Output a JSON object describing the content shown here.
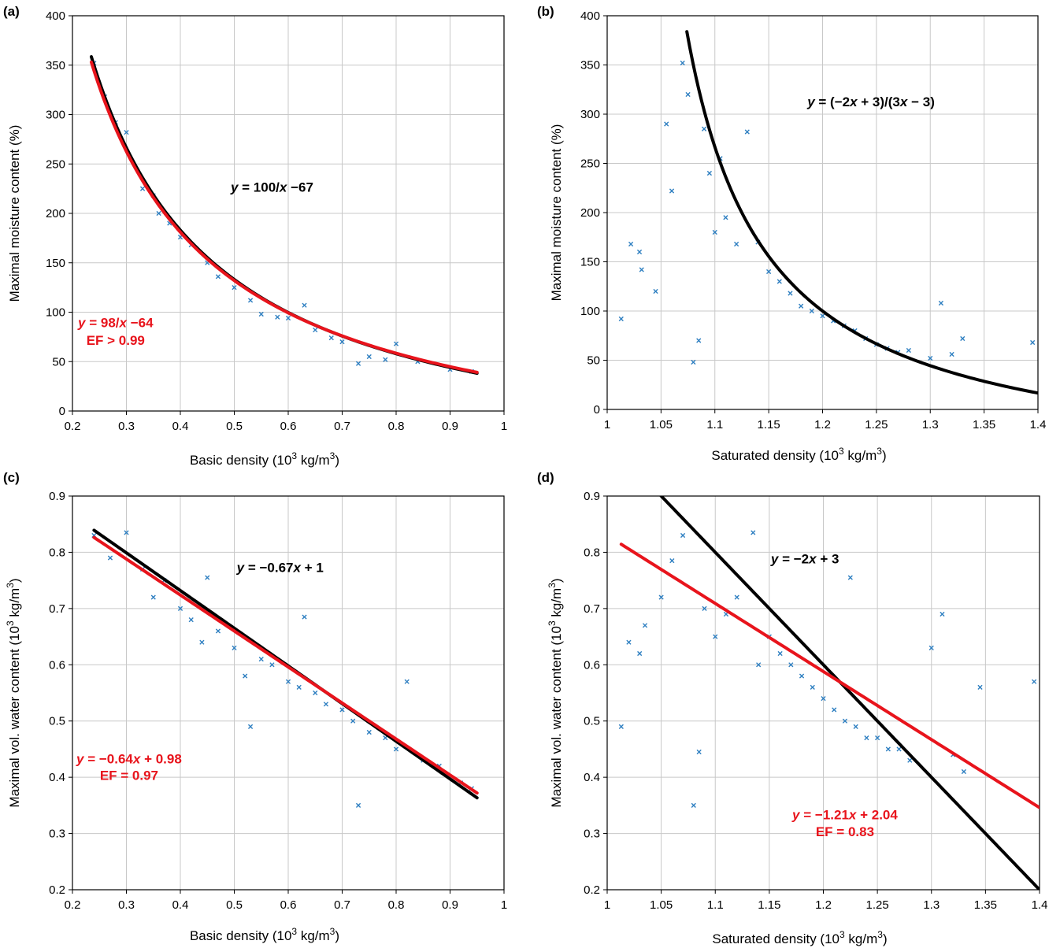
{
  "chart_data": [
    {
      "panel": "(a)",
      "type": "scatter",
      "xlabel": "Basic density (10³ kg/m³)",
      "ylabel": "Maximal moisture content (%)",
      "xlim": [
        0.2,
        1.0
      ],
      "ylim": [
        0,
        400
      ],
      "xticks": [
        0.2,
        0.3,
        0.4,
        0.5,
        0.6,
        0.7,
        0.8,
        0.9,
        1
      ],
      "yticks": [
        0,
        50,
        100,
        150,
        200,
        250,
        300,
        350,
        400
      ],
      "xtick_labels": [
        "0.2",
        "0.3",
        "0.4",
        "0.5",
        "0.6",
        "0.7",
        "0.8",
        "0.9",
        "1"
      ],
      "ytick_labels": [
        "0",
        "50",
        "100",
        "150",
        "200",
        "250",
        "300",
        "350",
        "400"
      ],
      "grid": true,
      "scatter_color": "#2e7fc1",
      "scatter_points": [
        [
          0.24,
          352
        ],
        [
          0.26,
          318
        ],
        [
          0.28,
          292
        ],
        [
          0.3,
          282
        ],
        [
          0.33,
          225
        ],
        [
          0.35,
          218
        ],
        [
          0.36,
          200
        ],
        [
          0.38,
          190
        ],
        [
          0.4,
          176
        ],
        [
          0.42,
          168
        ],
        [
          0.45,
          150
        ],
        [
          0.47,
          136
        ],
        [
          0.5,
          125
        ],
        [
          0.53,
          112
        ],
        [
          0.55,
          98
        ],
        [
          0.58,
          95
        ],
        [
          0.6,
          94
        ],
        [
          0.63,
          107
        ],
        [
          0.65,
          82
        ],
        [
          0.68,
          74
        ],
        [
          0.7,
          70
        ],
        [
          0.73,
          48
        ],
        [
          0.75,
          55
        ],
        [
          0.78,
          52
        ],
        [
          0.8,
          68
        ],
        [
          0.84,
          50
        ],
        [
          0.9,
          42
        ],
        [
          0.94,
          40
        ]
      ],
      "curves": [
        {
          "name": "y = 100/x −67",
          "color": "#000000",
          "x_range": [
            0.235,
            0.95
          ],
          "formula": "100/x - 67"
        },
        {
          "name": "y = 98/x −64",
          "color": "#e8141c",
          "x_range": [
            0.235,
            0.95
          ],
          "formula": "98/x - 64"
        }
      ],
      "annotations": [
        {
          "text": "y = 100/x −67",
          "color": "#000000",
          "x": 0.57,
          "y": 222
        },
        {
          "text": "y = 98/x −64",
          "color": "#e8141c",
          "x": 0.28,
          "y": 85
        },
        {
          "text": "EF > 0.99",
          "color": "#e8141c",
          "x": 0.28,
          "y": 67
        }
      ]
    },
    {
      "panel": "(b)",
      "type": "scatter",
      "xlabel": "Saturated density (10³ kg/m³)",
      "ylabel": "Maximal moisture content (%)",
      "xlim": [
        1.0,
        1.4
      ],
      "ylim": [
        0,
        400
      ],
      "xticks": [
        1,
        1.05,
        1.1,
        1.15,
        1.2,
        1.25,
        1.3,
        1.35,
        1.4
      ],
      "yticks": [
        0,
        50,
        100,
        150,
        200,
        250,
        300,
        350,
        400
      ],
      "xtick_labels": [
        "1",
        "1.05",
        "1.1",
        "1.15",
        "1.2",
        "1.25",
        "1.3",
        "1.35",
        "1.4"
      ],
      "ytick_labels": [
        "0",
        "50",
        "100",
        "150",
        "200",
        "250",
        "300",
        "350",
        "400"
      ],
      "grid": true,
      "scatter_color": "#2e7fc1",
      "scatter_points": [
        [
          1.013,
          92
        ],
        [
          1.022,
          168
        ],
        [
          1.03,
          160
        ],
        [
          1.032,
          142
        ],
        [
          1.045,
          120
        ],
        [
          1.055,
          290
        ],
        [
          1.06,
          222
        ],
        [
          1.07,
          352
        ],
        [
          1.075,
          320
        ],
        [
          1.08,
          48
        ],
        [
          1.085,
          70
        ],
        [
          1.09,
          285
        ],
        [
          1.095,
          240
        ],
        [
          1.1,
          180
        ],
        [
          1.105,
          255
        ],
        [
          1.11,
          195
        ],
        [
          1.12,
          168
        ],
        [
          1.13,
          282
        ],
        [
          1.14,
          170
        ],
        [
          1.15,
          140
        ],
        [
          1.16,
          130
        ],
        [
          1.17,
          118
        ],
        [
          1.18,
          105
        ],
        [
          1.19,
          100
        ],
        [
          1.2,
          95
        ],
        [
          1.21,
          90
        ],
        [
          1.22,
          85
        ],
        [
          1.23,
          80
        ],
        [
          1.24,
          72
        ],
        [
          1.25,
          66
        ],
        [
          1.26,
          62
        ],
        [
          1.27,
          58
        ],
        [
          1.28,
          60
        ],
        [
          1.3,
          52
        ],
        [
          1.31,
          108
        ],
        [
          1.32,
          56
        ],
        [
          1.33,
          72
        ],
        [
          1.395,
          68
        ]
      ],
      "curves": [
        {
          "name": "y = (−2x + 3)/(3x − 3)",
          "color": "#000000",
          "x_range": [
            1.074,
            1.4
          ],
          "formula": "100*(3-2x)/(3x-3)"
        }
      ],
      "annotations": [
        {
          "text": "y = (−2x + 3)/(3x − 3)",
          "color": "#000000",
          "x": 1.245,
          "y": 308
        }
      ]
    },
    {
      "panel": "(c)",
      "type": "scatter",
      "xlabel": "Basic density (10³ kg/m³)",
      "ylabel": "Maximal vol. water content (10³ kg/m³)",
      "xlim": [
        0.2,
        1.0
      ],
      "ylim": [
        0.2,
        0.9
      ],
      "xticks": [
        0.2,
        0.3,
        0.4,
        0.5,
        0.6,
        0.7,
        0.8,
        0.9,
        1
      ],
      "yticks": [
        0.2,
        0.3,
        0.4,
        0.5,
        0.6,
        0.7,
        0.8,
        0.9
      ],
      "xtick_labels": [
        "0.2",
        "0.3",
        "0.4",
        "0.5",
        "0.6",
        "0.7",
        "0.8",
        "0.9",
        "1"
      ],
      "ytick_labels": [
        "0.2",
        "0.3",
        "0.4",
        "0.5",
        "0.6",
        "0.7",
        "0.8",
        "0.9"
      ],
      "grid": true,
      "scatter_color": "#2e7fc1",
      "scatter_points": [
        [
          0.24,
          0.83
        ],
        [
          0.27,
          0.79
        ],
        [
          0.3,
          0.835
        ],
        [
          0.33,
          0.77
        ],
        [
          0.35,
          0.72
        ],
        [
          0.37,
          0.75
        ],
        [
          0.4,
          0.7
        ],
        [
          0.42,
          0.68
        ],
        [
          0.44,
          0.64
        ],
        [
          0.45,
          0.755
        ],
        [
          0.47,
          0.66
        ],
        [
          0.5,
          0.63
        ],
        [
          0.52,
          0.58
        ],
        [
          0.53,
          0.49
        ],
        [
          0.55,
          0.61
        ],
        [
          0.57,
          0.6
        ],
        [
          0.6,
          0.57
        ],
        [
          0.62,
          0.56
        ],
        [
          0.63,
          0.685
        ],
        [
          0.65,
          0.55
        ],
        [
          0.67,
          0.53
        ],
        [
          0.7,
          0.52
        ],
        [
          0.72,
          0.5
        ],
        [
          0.73,
          0.35
        ],
        [
          0.75,
          0.48
        ],
        [
          0.78,
          0.47
        ],
        [
          0.8,
          0.45
        ],
        [
          0.82,
          0.57
        ],
        [
          0.85,
          0.43
        ],
        [
          0.88,
          0.42
        ],
        [
          0.92,
          0.39
        ],
        [
          0.94,
          0.38
        ]
      ],
      "curves": [
        {
          "name": "y = −0.67x + 1",
          "color": "#000000",
          "x_range": [
            0.24,
            0.95
          ],
          "formula": "-0.67x + 1"
        },
        {
          "name": "y = −0.64x + 0.98",
          "color": "#e8141c",
          "x_range": [
            0.24,
            0.95
          ],
          "formula": "-0.64x + 0.98"
        }
      ],
      "annotations": [
        {
          "text": "y = −0.67x + 1",
          "color": "#000000",
          "x": 0.585,
          "y": 0.765
        },
        {
          "text": "y = −0.64x + 0.98",
          "color": "#e8141c",
          "x": 0.305,
          "y": 0.425
        },
        {
          "text": "EF = 0.97",
          "color": "#e8141c",
          "x": 0.305,
          "y": 0.395
        }
      ]
    },
    {
      "panel": "(d)",
      "type": "scatter",
      "xlabel": "Saturated density (10³ kg/m³)",
      "ylabel": "Maximal vol. water content (10³ kg/m³)",
      "xlim": [
        1.0,
        1.4
      ],
      "ylim": [
        0.2,
        0.9
      ],
      "xticks": [
        1,
        1.05,
        1.1,
        1.15,
        1.2,
        1.25,
        1.3,
        1.35,
        1.4
      ],
      "yticks": [
        0.2,
        0.3,
        0.4,
        0.5,
        0.6,
        0.7,
        0.8,
        0.9
      ],
      "xtick_labels": [
        "1",
        "1.05",
        "1.1",
        "1.15",
        "1.2",
        "1.25",
        "1.3",
        "1.35",
        "1.4"
      ],
      "ytick_labels": [
        "0.2",
        "0.3",
        "0.4",
        "0.5",
        "0.6",
        "0.7",
        "0.8",
        "0.9"
      ],
      "grid": true,
      "scatter_color": "#2e7fc1",
      "scatter_points": [
        [
          1.013,
          0.49
        ],
        [
          1.02,
          0.64
        ],
        [
          1.03,
          0.62
        ],
        [
          1.035,
          0.67
        ],
        [
          1.05,
          0.72
        ],
        [
          1.06,
          0.785
        ],
        [
          1.07,
          0.83
        ],
        [
          1.08,
          0.35
        ],
        [
          1.085,
          0.445
        ],
        [
          1.09,
          0.7
        ],
        [
          1.1,
          0.65
        ],
        [
          1.11,
          0.69
        ],
        [
          1.12,
          0.72
        ],
        [
          1.135,
          0.835
        ],
        [
          1.14,
          0.6
        ],
        [
          1.15,
          0.65
        ],
        [
          1.16,
          0.62
        ],
        [
          1.17,
          0.6
        ],
        [
          1.18,
          0.58
        ],
        [
          1.19,
          0.56
        ],
        [
          1.2,
          0.54
        ],
        [
          1.21,
          0.52
        ],
        [
          1.22,
          0.5
        ],
        [
          1.225,
          0.755
        ],
        [
          1.23,
          0.49
        ],
        [
          1.24,
          0.47
        ],
        [
          1.25,
          0.47
        ],
        [
          1.26,
          0.45
        ],
        [
          1.27,
          0.45
        ],
        [
          1.28,
          0.43
        ],
        [
          1.3,
          0.63
        ],
        [
          1.31,
          0.69
        ],
        [
          1.32,
          0.44
        ],
        [
          1.33,
          0.41
        ],
        [
          1.345,
          0.56
        ],
        [
          1.395,
          0.57
        ]
      ],
      "curves": [
        {
          "name": "y = −2x + 3",
          "color": "#000000",
          "x_range": [
            1.05,
            1.4
          ],
          "formula": "-2x + 3"
        },
        {
          "name": "y = −1.21x + 2.04",
          "color": "#e8141c",
          "x_range": [
            1.013,
            1.4
          ],
          "formula": "-1.21x + 2.04"
        }
      ],
      "annotations": [
        {
          "text": "y = −2x + 3",
          "color": "#000000",
          "x": 1.183,
          "y": 0.78
        },
        {
          "text": "y = −1.21x + 2.04",
          "color": "#e8141c",
          "x": 1.22,
          "y": 0.325
        },
        {
          "text": "EF = 0.83",
          "color": "#e8141c",
          "x": 1.22,
          "y": 0.295
        }
      ]
    }
  ]
}
